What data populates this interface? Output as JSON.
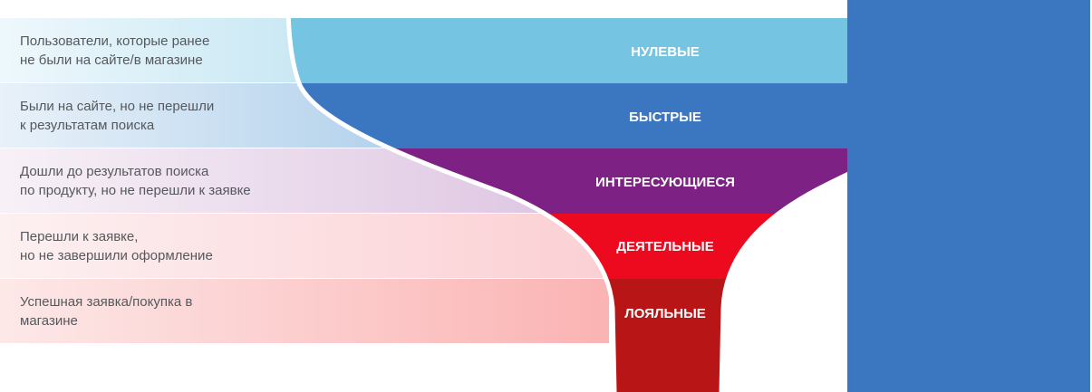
{
  "funnel": {
    "stages": [
      {
        "label": "НУЛЕВЫЕ",
        "description": "Пользователи, которые ранее\nне были на сайте/в магазине",
        "color": "#74c4e2"
      },
      {
        "label": "БЫСТРЫЕ",
        "description": "Были на сайте, но не перешли\nк результатам поиска",
        "color": "#3a77c0"
      },
      {
        "label": "ИНТЕРЕСУЮЩИЕСЯ",
        "description": "Дошли до результатов поиска\nпо продукту, но не перешли к заявке",
        "color": "#7d2184"
      },
      {
        "label": "ДЕЯТЕЛЬНЫЕ",
        "description": "Перешли к заявке,\nно не завершили оформление",
        "color": "#ee0a1e"
      },
      {
        "label": "ЛОЯЛЬНЫЕ",
        "description": "Успешная заявка/покупка в\nмагазине",
        "color": "#b81616"
      }
    ],
    "side_bar_color": "#3a77c0"
  }
}
